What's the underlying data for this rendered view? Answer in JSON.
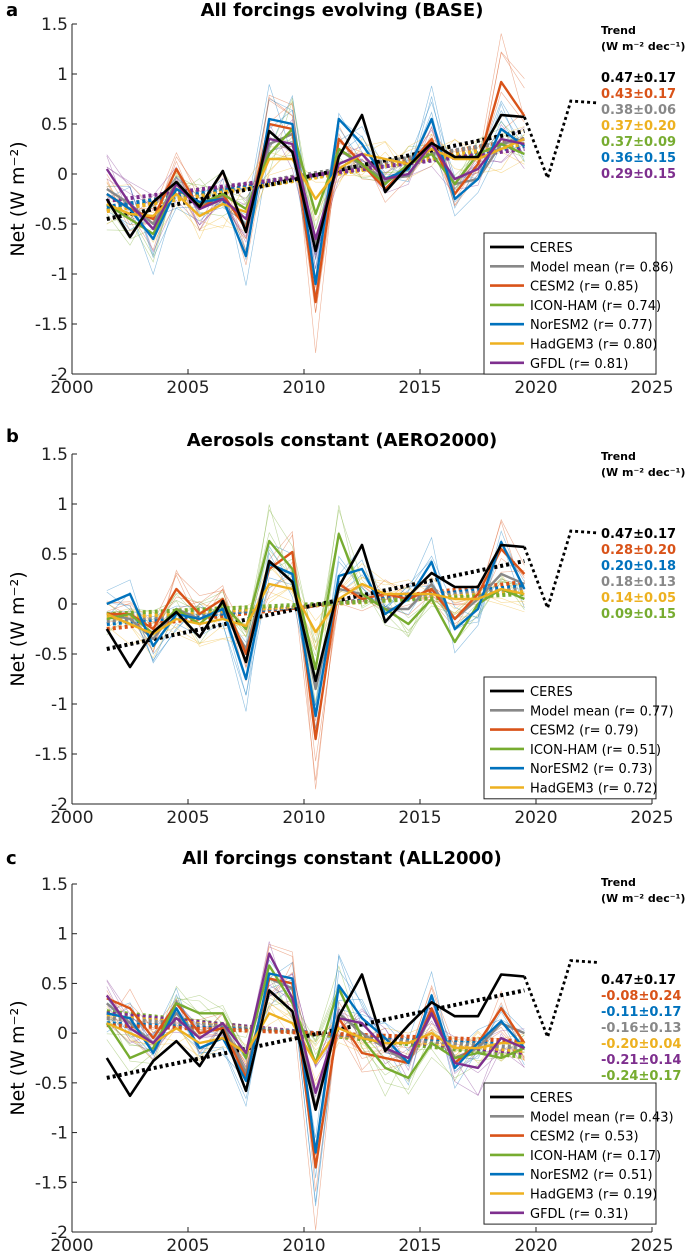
{
  "colors": {
    "CERES": "#000000",
    "Model mean": "#888888",
    "CESM2": "#d95319",
    "ICON-HAM": "#77ac30",
    "NorESM2": "#0072bd",
    "HadGEM3": "#edb120",
    "GFDL": "#7e2f8e"
  },
  "chart_data": [
    {
      "type": "line",
      "panel_letter": "a",
      "title": "All forcings evolving (BASE)",
      "xlabel": "",
      "ylabel": "Net (W m⁻²)",
      "xlim": [
        2000,
        2025
      ],
      "ylim": [
        -2,
        1.5
      ],
      "xticks": [
        2000,
        2005,
        2010,
        2015,
        2020,
        2025
      ],
      "yticks": [
        -2,
        -1.5,
        -1,
        -0.5,
        0,
        0.5,
        1,
        1.5
      ],
      "x": [
        2001.5,
        2002.5,
        2003.5,
        2004.5,
        2005.5,
        2006.5,
        2007.5,
        2008.5,
        2009.5,
        2010.5,
        2011.5,
        2012.5,
        2013.5,
        2014.5,
        2015.5,
        2016.5,
        2017.5,
        2018.5,
        2019.5
      ],
      "series": [
        {
          "name": "CERES",
          "values": [
            -0.25,
            -0.63,
            -0.28,
            -0.08,
            -0.33,
            0.03,
            -0.58,
            0.43,
            0.22,
            -0.77,
            0.17,
            0.59,
            -0.18,
            0.08,
            0.31,
            0.17,
            0.17,
            0.59,
            0.57
          ]
        },
        {
          "name": "Model mean",
          "values": [
            -0.15,
            -0.3,
            -0.5,
            -0.08,
            -0.32,
            -0.22,
            -0.52,
            0.3,
            0.4,
            -0.72,
            0.25,
            0.08,
            -0.05,
            -0.02,
            0.3,
            -0.1,
            -0.05,
            0.3,
            0.35
          ]
        },
        {
          "name": "CESM2",
          "values": [
            -0.2,
            -0.35,
            -0.45,
            0.05,
            -0.35,
            -0.2,
            -0.55,
            0.5,
            0.45,
            -1.28,
            0.35,
            0.1,
            -0.15,
            0.08,
            0.35,
            -0.2,
            0.1,
            0.92,
            0.58
          ]
        },
        {
          "name": "ICON-HAM",
          "values": [
            -0.3,
            -0.45,
            -0.6,
            -0.15,
            -0.3,
            -0.2,
            -0.35,
            0.2,
            0.45,
            -0.4,
            0.25,
            0.1,
            -0.1,
            0.1,
            0.2,
            -0.1,
            0.2,
            0.3,
            0.2
          ]
        },
        {
          "name": "NorESM2",
          "values": [
            -0.2,
            -0.35,
            -0.65,
            -0.15,
            -0.28,
            -0.25,
            -0.82,
            0.55,
            0.5,
            -1.1,
            0.55,
            0.3,
            -0.05,
            0.05,
            0.55,
            -0.25,
            -0.05,
            0.45,
            0.28
          ]
        },
        {
          "name": "HadGEM3",
          "values": [
            -0.3,
            -0.4,
            -0.42,
            -0.2,
            -0.42,
            -0.3,
            -0.38,
            0.15,
            0.15,
            -0.25,
            0.05,
            0.2,
            0.15,
            0.1,
            0.25,
            0.15,
            0.15,
            0.25,
            0.35
          ]
        },
        {
          "name": "GFDL",
          "values": [
            0.05,
            -0.3,
            -0.55,
            -0.1,
            -0.35,
            -0.25,
            -0.45,
            0.35,
            0.3,
            -0.65,
            0.1,
            0.2,
            -0.05,
            0.0,
            0.3,
            -0.05,
            0.05,
            0.35,
            0.3
          ]
        }
      ],
      "trend_lines": [
        {
          "name": "CESM2",
          "start": -0.37,
          "end": 0.35
        },
        {
          "name": "Model mean",
          "start": -0.33,
          "end": 0.35
        },
        {
          "name": "ICON-HAM",
          "start": -0.36,
          "end": 0.3
        },
        {
          "name": "NorESM2",
          "start": -0.33,
          "end": 0.28
        },
        {
          "name": "HadGEM3",
          "start": -0.37,
          "end": 0.3
        },
        {
          "name": "GFDL",
          "start": -0.27,
          "end": 0.25
        },
        {
          "name": "CERES",
          "start": -0.45,
          "end": 0.43
        }
      ],
      "extension": {
        "x": [
          2020.5,
          2021.5,
          2022.7
        ],
        "y": [
          -0.04,
          0.73,
          0.71
        ]
      },
      "trend_header": [
        "Trend",
        "(W m⁻² dec⁻¹):"
      ],
      "trends": [
        {
          "name": "CERES",
          "text": "0.47±0.17"
        },
        {
          "name": "CESM2",
          "text": "0.43±0.17"
        },
        {
          "name": "Model mean",
          "text": "0.38±0.06"
        },
        {
          "name": "HadGEM3",
          "text": "0.37±0.20"
        },
        {
          "name": "ICON-HAM",
          "text": "0.37±0.09"
        },
        {
          "name": "NorESM2",
          "text": "0.36±0.15"
        },
        {
          "name": "GFDL",
          "text": "0.29±0.15"
        }
      ],
      "legend_position": "bottom-right",
      "legend": [
        {
          "name": "CERES",
          "label": "CERES"
        },
        {
          "name": "Model mean",
          "label": "Model mean (r= 0.86)"
        },
        {
          "name": "CESM2",
          "label": "CESM2 (r= 0.85)"
        },
        {
          "name": "ICON-HAM",
          "label": "ICON-HAM (r= 0.74)"
        },
        {
          "name": "NorESM2",
          "label": "NorESM2 (r= 0.77)"
        },
        {
          "name": "HadGEM3",
          "label": "HadGEM3 (r= 0.80)"
        },
        {
          "name": "GFDL",
          "label": "GFDL (r= 0.81)"
        }
      ]
    },
    {
      "type": "line",
      "panel_letter": "b",
      "title": "Aerosols constant (AERO2000)",
      "xlabel": "",
      "ylabel": "Net (W m⁻²)",
      "xlim": [
        2000,
        2025
      ],
      "ylim": [
        -2,
        1.5
      ],
      "xticks": [
        2000,
        2005,
        2010,
        2015,
        2020,
        2025
      ],
      "yticks": [
        -2,
        -1.5,
        -1,
        -0.5,
        0,
        0.5,
        1,
        1.5
      ],
      "x": [
        2001.5,
        2002.5,
        2003.5,
        2004.5,
        2005.5,
        2006.5,
        2007.5,
        2008.5,
        2009.5,
        2010.5,
        2011.5,
        2012.5,
        2013.5,
        2014.5,
        2015.5,
        2016.5,
        2017.5,
        2018.5,
        2019.5
      ],
      "series": [
        {
          "name": "CERES",
          "values": [
            -0.25,
            -0.63,
            -0.28,
            -0.08,
            -0.33,
            0.03,
            -0.58,
            0.43,
            0.22,
            -0.77,
            0.17,
            0.59,
            -0.18,
            0.08,
            0.31,
            0.17,
            0.17,
            0.59,
            0.57
          ]
        },
        {
          "name": "Model mean",
          "values": [
            -0.1,
            -0.15,
            -0.35,
            -0.05,
            -0.15,
            -0.05,
            -0.45,
            0.4,
            0.3,
            -0.85,
            0.15,
            0.1,
            -0.05,
            -0.05,
            0.2,
            -0.15,
            0.05,
            0.3,
            0.2
          ]
        },
        {
          "name": "CESM2",
          "values": [
            -0.1,
            -0.1,
            -0.25,
            0.15,
            -0.1,
            0.05,
            -0.5,
            0.35,
            0.52,
            -1.35,
            0.2,
            0.05,
            0.1,
            0.05,
            0.15,
            -0.15,
            0.1,
            0.55,
            0.3
          ]
        },
        {
          "name": "ICON-HAM",
          "values": [
            -0.15,
            -0.1,
            -0.3,
            -0.05,
            -0.2,
            0.0,
            -0.25,
            0.63,
            0.35,
            -0.65,
            0.7,
            0.1,
            -0.05,
            -0.2,
            0.05,
            -0.38,
            0.0,
            0.15,
            0.05
          ]
        },
        {
          "name": "NorESM2",
          "values": [
            0.0,
            0.1,
            -0.42,
            -0.1,
            -0.15,
            -0.05,
            -0.75,
            0.4,
            0.3,
            -1.12,
            0.28,
            0.35,
            -0.1,
            0.05,
            0.42,
            -0.25,
            -0.05,
            0.62,
            0.15
          ]
        },
        {
          "name": "HadGEM3",
          "values": [
            -0.1,
            -0.2,
            -0.3,
            -0.15,
            -0.2,
            -0.15,
            -0.22,
            0.2,
            0.15,
            -0.28,
            0.05,
            0.2,
            0.1,
            0.1,
            0.1,
            0.05,
            0.05,
            0.15,
            0.1
          ]
        }
      ],
      "trend_lines": [
        {
          "name": "CESM2",
          "start": -0.25,
          "end": 0.22
        },
        {
          "name": "NorESM2",
          "start": -0.2,
          "end": 0.18
        },
        {
          "name": "Model mean",
          "start": -0.17,
          "end": 0.15
        },
        {
          "name": "HadGEM3",
          "start": -0.14,
          "end": 0.12
        },
        {
          "name": "ICON-HAM",
          "start": -0.1,
          "end": 0.1
        },
        {
          "name": "CERES",
          "start": -0.45,
          "end": 0.43
        }
      ],
      "extension": {
        "x": [
          2020.5,
          2021.5,
          2022.7
        ],
        "y": [
          -0.04,
          0.73,
          0.71
        ]
      },
      "trend_header": [
        "Trend",
        "(W m⁻² dec⁻¹):"
      ],
      "trends": [
        {
          "name": "CERES",
          "text": "0.47±0.17"
        },
        {
          "name": "CESM2",
          "text": "0.28±0.20"
        },
        {
          "name": "NorESM2",
          "text": "0.20±0.18"
        },
        {
          "name": "Model mean",
          "text": "0.18±0.13"
        },
        {
          "name": "HadGEM3",
          "text": "0.14±0.05"
        },
        {
          "name": "ICON-HAM",
          "text": "0.09±0.15"
        }
      ],
      "legend_position": "bottom-right",
      "legend": [
        {
          "name": "CERES",
          "label": "CERES"
        },
        {
          "name": "Model mean",
          "label": "Model mean (r= 0.77)"
        },
        {
          "name": "CESM2",
          "label": "CESM2 (r= 0.79)"
        },
        {
          "name": "ICON-HAM",
          "label": "ICON-HAM (r= 0.51)"
        },
        {
          "name": "NorESM2",
          "label": "NorESM2 (r= 0.73)"
        },
        {
          "name": "HadGEM3",
          "label": "HadGEM3 (r= 0.72)"
        }
      ]
    },
    {
      "type": "line",
      "panel_letter": "c",
      "title": "All forcings constant (ALL2000)",
      "xlabel": "",
      "ylabel": "Net (W m⁻²)",
      "xlim": [
        2000,
        2025
      ],
      "ylim": [
        -2,
        1.5
      ],
      "xticks": [
        2000,
        2005,
        2010,
        2015,
        2020,
        2025
      ],
      "yticks": [
        -2,
        -1.5,
        -1,
        -0.5,
        0,
        0.5,
        1,
        1.5
      ],
      "x": [
        2001.5,
        2002.5,
        2003.5,
        2004.5,
        2005.5,
        2006.5,
        2007.5,
        2008.5,
        2009.5,
        2010.5,
        2011.5,
        2012.5,
        2013.5,
        2014.5,
        2015.5,
        2016.5,
        2017.5,
        2018.5,
        2019.5
      ],
      "series": [
        {
          "name": "CERES",
          "values": [
            -0.25,
            -0.63,
            -0.28,
            -0.08,
            -0.33,
            0.03,
            -0.58,
            0.43,
            0.22,
            -0.77,
            0.17,
            0.59,
            -0.18,
            0.08,
            0.31,
            0.17,
            0.17,
            0.59,
            0.57
          ]
        },
        {
          "name": "Model mean",
          "values": [
            0.3,
            0.1,
            -0.1,
            0.2,
            -0.05,
            0.1,
            -0.4,
            0.55,
            0.45,
            -0.75,
            0.2,
            0.0,
            -0.15,
            -0.3,
            0.2,
            -0.25,
            -0.15,
            0.1,
            0.0
          ]
        },
        {
          "name": "CESM2",
          "values": [
            0.35,
            0.25,
            -0.05,
            0.3,
            0.0,
            0.05,
            -0.45,
            0.55,
            0.5,
            -1.35,
            0.15,
            -0.2,
            -0.25,
            -0.3,
            0.25,
            -0.3,
            -0.1,
            0.25,
            -0.1
          ]
        },
        {
          "name": "ICON-HAM",
          "values": [
            0.1,
            -0.25,
            -0.15,
            0.3,
            0.2,
            0.2,
            -0.25,
            0.68,
            0.3,
            -0.3,
            0.45,
            -0.05,
            -0.35,
            -0.45,
            -0.1,
            -0.25,
            -0.2,
            -0.25,
            -0.15
          ]
        },
        {
          "name": "NorESM2",
          "values": [
            0.2,
            0.15,
            -0.2,
            0.25,
            -0.15,
            -0.05,
            -0.48,
            0.6,
            0.55,
            -1.2,
            0.48,
            0.15,
            -0.05,
            -0.3,
            0.38,
            -0.35,
            -0.1,
            0.12,
            -0.15
          ]
        },
        {
          "name": "HadGEM3",
          "values": [
            0.1,
            0.0,
            -0.1,
            0.05,
            -0.1,
            -0.05,
            -0.2,
            0.2,
            0.1,
            -0.3,
            0.05,
            -0.05,
            -0.1,
            -0.1,
            0.0,
            -0.15,
            -0.15,
            -0.1,
            -0.1
          ]
        },
        {
          "name": "GFDL",
          "values": [
            0.38,
            0.05,
            -0.1,
            0.15,
            -0.05,
            0.1,
            -0.2,
            0.8,
            0.35,
            -0.6,
            0.15,
            0.1,
            -0.15,
            -0.25,
            0.2,
            -0.3,
            -0.35,
            -0.05,
            -0.15
          ]
        }
      ],
      "trend_lines": [
        {
          "name": "ICON-HAM",
          "start": 0.22,
          "end": -0.24
        },
        {
          "name": "GFDL",
          "start": 0.2,
          "end": -0.2
        },
        {
          "name": "HadGEM3",
          "start": 0.17,
          "end": -0.18
        },
        {
          "name": "Model mean",
          "start": 0.15,
          "end": -0.15
        },
        {
          "name": "NorESM2",
          "start": 0.1,
          "end": -0.1
        },
        {
          "name": "CESM2",
          "start": 0.08,
          "end": -0.08
        },
        {
          "name": "CERES",
          "start": -0.45,
          "end": 0.43
        }
      ],
      "extension": {
        "x": [
          2020.5,
          2021.5,
          2022.7
        ],
        "y": [
          -0.04,
          0.73,
          0.71
        ]
      },
      "trend_header": [
        "Trend",
        "(W m⁻² dec⁻¹):"
      ],
      "trends": [
        {
          "name": "CERES",
          "text": "0.47±0.17"
        },
        {
          "name": "CESM2",
          "text": "-0.08±0.24"
        },
        {
          "name": "NorESM2",
          "text": "-0.11±0.17"
        },
        {
          "name": "Model mean",
          "text": "-0.16±0.13"
        },
        {
          "name": "HadGEM3",
          "text": "-0.20±0.04"
        },
        {
          "name": "GFDL",
          "text": "-0.21±0.14"
        },
        {
          "name": "ICON-HAM",
          "text": "-0.24±0.17"
        }
      ],
      "legend_position": "bottom-right",
      "legend": [
        {
          "name": "CERES",
          "label": "CERES"
        },
        {
          "name": "Model mean",
          "label": "Model mean (r= 0.43)"
        },
        {
          "name": "CESM2",
          "label": "CESM2 (r= 0.53)"
        },
        {
          "name": "ICON-HAM",
          "label": "ICON-HAM (r= 0.17)"
        },
        {
          "name": "NorESM2",
          "label": "NorESM2 (r= 0.51)"
        },
        {
          "name": "HadGEM3",
          "label": "HadGEM3 (r= 0.19)"
        },
        {
          "name": "GFDL",
          "label": "GFDL (r= 0.31)"
        }
      ]
    }
  ]
}
